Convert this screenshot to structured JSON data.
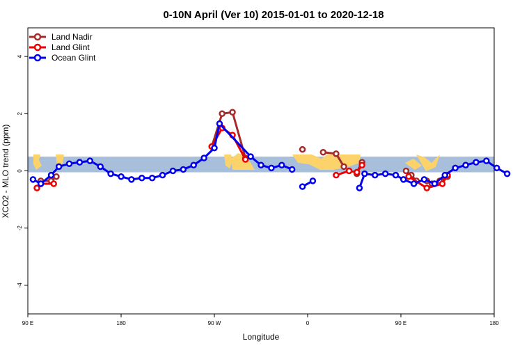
{
  "chart_data": {
    "type": "line",
    "title": "0-10N April (Ver 10)   2015-01-01 to 2020-12-18",
    "xlabel": "Longitude",
    "ylabel": "XCO2 - MLO trend (ppm)",
    "xlim": [
      90,
      450
    ],
    "ylim": [
      -5,
      5
    ],
    "x_ticks": [
      {
        "value": 90,
        "label": "90 E"
      },
      {
        "value": 162,
        "label": "180"
      },
      {
        "value": 234,
        "label": "90 W"
      },
      {
        "value": 306,
        "label": "0"
      },
      {
        "value": 378,
        "label": "90 E"
      },
      {
        "value": 450,
        "label": "180"
      }
    ],
    "y_ticks": [
      {
        "value": -4,
        "label": "-4"
      },
      {
        "value": -2,
        "label": "-2"
      },
      {
        "value": 0,
        "label": "0"
      },
      {
        "value": 2,
        "label": "2"
      },
      {
        "value": 4,
        "label": "4"
      }
    ],
    "band": {
      "ymin": -0.05,
      "ymax": 0.5,
      "color": "#a8bfdc",
      "land_color": "#fcd36a"
    },
    "legend_position": "top-left",
    "series": [
      {
        "name": "Land Nadir",
        "color": "#a52a2a",
        "segments": [
          [
            [
              100,
              -0.35
            ],
            [
              108,
              -0.35
            ],
            [
              112,
              -0.2
            ]
          ],
          [
            [
              232,
              0.85
            ],
            [
              240,
              2.0
            ],
            [
              248,
              2.05
            ],
            [
              258,
              0.45
            ]
          ],
          [
            [
              302,
              0.75
            ]
          ],
          [
            [
              318,
              0.65
            ],
            [
              328,
              0.6
            ],
            [
              334,
              0.15
            ]
          ],
          [
            [
              344,
              -0.1
            ],
            [
              344,
              -0.05
            ],
            [
              348,
              0.3
            ]
          ],
          [
            [
              382,
              0.0
            ],
            [
              386,
              -0.15
            ],
            [
              390,
              -0.35
            ]
          ],
          [
            [
              398,
              -0.35
            ],
            [
              402,
              -0.45
            ],
            [
              408,
              -0.35
            ],
            [
              414,
              -0.2
            ]
          ]
        ]
      },
      {
        "name": "Land Glint",
        "color": "#ee0000",
        "segments": [
          [
            [
              97,
              -0.6
            ],
            [
              100,
              -0.45
            ],
            [
              110,
              -0.45
            ]
          ],
          [
            [
              232,
              0.85
            ],
            [
              240,
              1.5
            ],
            [
              248,
              1.25
            ],
            [
              258,
              0.4
            ]
          ],
          [
            [
              328,
              -0.15
            ],
            [
              338,
              -0.0
            ],
            [
              344,
              -0.05
            ],
            [
              348,
              0.2
            ]
          ],
          [
            [
              384,
              -0.2
            ],
            [
              398,
              -0.6
            ],
            [
              410,
              -0.45
            ],
            [
              414,
              -0.15
            ]
          ]
        ]
      },
      {
        "name": "Ocean Glint",
        "color": "#0000ee",
        "segments": [
          [
            [
              94,
              -0.3
            ],
            [
              100,
              -0.45
            ],
            [
              108,
              -0.15
            ],
            [
              114,
              0.15
            ],
            [
              122,
              0.25
            ],
            [
              130,
              0.3
            ],
            [
              138,
              0.35
            ],
            [
              146,
              0.15
            ],
            [
              154,
              -0.1
            ],
            [
              162,
              -0.2
            ],
            [
              170,
              -0.3
            ],
            [
              178,
              -0.25
            ],
            [
              186,
              -0.25
            ],
            [
              194,
              -0.15
            ],
            [
              202,
              0.0
            ],
            [
              210,
              0.05
            ],
            [
              218,
              0.2
            ],
            [
              226,
              0.45
            ],
            [
              234,
              0.8
            ],
            [
              238,
              1.65
            ],
            [
              262,
              0.5
            ],
            [
              270,
              0.2
            ],
            [
              278,
              0.1
            ],
            [
              286,
              0.2
            ],
            [
              294,
              0.05
            ]
          ],
          [
            [
              302,
              -0.55
            ],
            [
              310,
              -0.35
            ]
          ],
          [
            [
              346,
              -0.6
            ],
            [
              350,
              -0.1
            ],
            [
              358,
              -0.15
            ],
            [
              366,
              -0.1
            ],
            [
              374,
              -0.15
            ],
            [
              380,
              -0.3
            ],
            [
              388,
              -0.45
            ],
            [
              396,
              -0.3
            ],
            [
              404,
              -0.45
            ],
            [
              412,
              -0.15
            ],
            [
              420,
              0.1
            ],
            [
              428,
              0.2
            ],
            [
              436,
              0.3
            ],
            [
              444,
              0.35
            ],
            [
              452,
              0.1
            ],
            [
              460,
              -0.1
            ]
          ]
        ]
      }
    ]
  }
}
